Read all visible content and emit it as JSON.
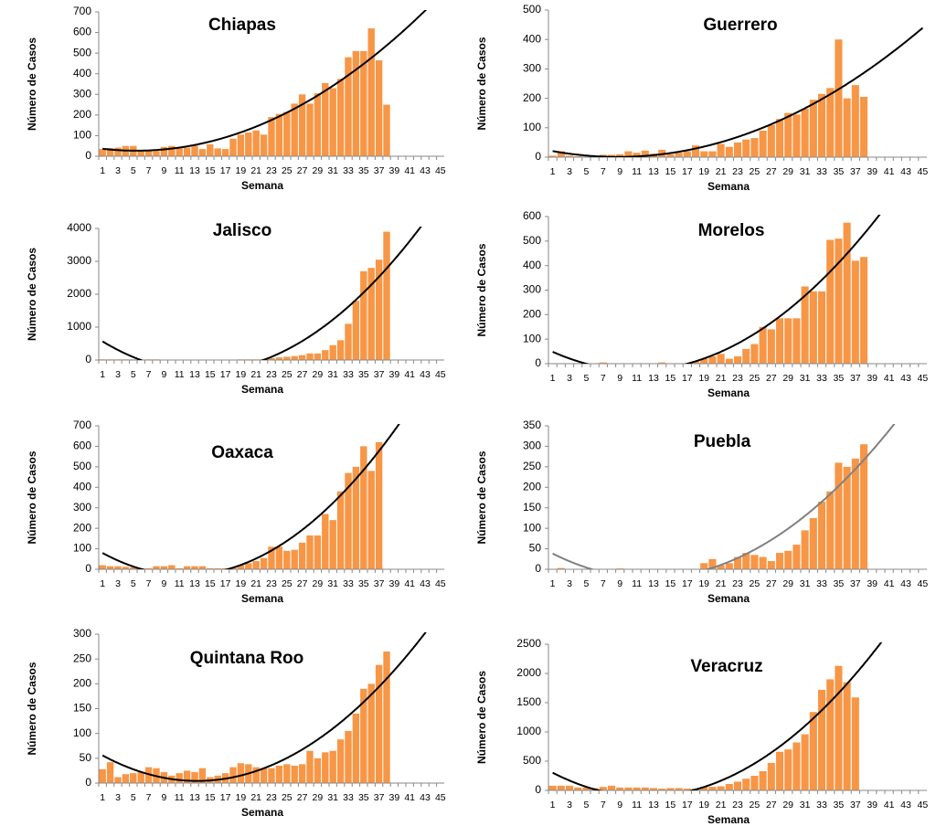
{
  "chart_data": [
    {
      "type": "bar",
      "title": "Chiapas",
      "x_label": "Semana",
      "y_label": "Número de Casos",
      "color": "#f79646",
      "categories": [
        "1",
        null,
        "3",
        null,
        "5",
        null,
        "7",
        null,
        "9",
        null,
        "11",
        null,
        "13",
        null,
        "15",
        null,
        "17",
        null,
        "19",
        null,
        "21",
        null,
        "23",
        null,
        "25",
        null,
        "27",
        null,
        "29",
        null,
        "31",
        null,
        "33",
        null,
        "35",
        null,
        "37",
        null,
        "39",
        null,
        "41",
        null,
        "43",
        null,
        "45"
      ],
      "values": [
        35,
        40,
        42,
        50,
        50,
        30,
        25,
        25,
        45,
        50,
        40,
        42,
        52,
        35,
        58,
        38,
        35,
        85,
        105,
        115,
        125,
        105,
        190,
        205,
        215,
        255,
        300,
        255,
        305,
        355,
        330,
        375,
        480,
        510,
        510,
        620,
        465,
        250,
        null,
        null,
        null,
        null,
        null,
        null,
        null
      ],
      "ylim": [
        0,
        700
      ],
      "yticks": [
        0,
        100,
        200,
        300,
        400,
        500,
        600,
        700
      ],
      "trendline": {
        "order": 2,
        "color": "#000000"
      }
    },
    {
      "type": "bar",
      "title": "Guerrero",
      "x_label": "Semana",
      "y_label": "Número de Casos",
      "color": "#f79646",
      "categories": [
        "1",
        null,
        "3",
        null,
        "5",
        null,
        "7",
        null,
        "9",
        null,
        "11",
        null,
        "13",
        null,
        "15",
        null,
        "17",
        null,
        "19",
        null,
        "21",
        null,
        "23",
        null,
        "25",
        null,
        "27",
        null,
        "29",
        null,
        "31",
        null,
        "33",
        null,
        "35",
        null,
        "37",
        null,
        "39",
        null,
        "41",
        null,
        "43",
        null,
        "45"
      ],
      "values": [
        5,
        20,
        5,
        3,
        2,
        2,
        8,
        8,
        10,
        20,
        15,
        22,
        12,
        25,
        10,
        15,
        20,
        40,
        20,
        20,
        45,
        35,
        50,
        60,
        65,
        90,
        110,
        130,
        150,
        145,
        165,
        195,
        215,
        235,
        400,
        200,
        245,
        205,
        null,
        null,
        null,
        null,
        null,
        null,
        null
      ],
      "ylim": [
        0,
        500
      ],
      "yticks": [
        0,
        100,
        200,
        300,
        400,
        500
      ],
      "trendline": {
        "order": 2,
        "color": "#000000"
      }
    },
    {
      "type": "bar",
      "title": "Jalisco",
      "x_label": "Semana",
      "y_label": "Número de Casos",
      "color": "#f79646",
      "categories": [
        "1",
        null,
        "3",
        null,
        "5",
        null,
        "7",
        null,
        "9",
        null,
        "11",
        null,
        "13",
        null,
        "15",
        null,
        "17",
        null,
        "19",
        null,
        "21",
        null,
        "23",
        null,
        "25",
        null,
        "27",
        null,
        "29",
        null,
        "31",
        null,
        "33",
        null,
        "35",
        null,
        "37",
        null,
        "39",
        null,
        "41",
        null,
        "43",
        null,
        "45"
      ],
      "values": [
        20,
        20,
        20,
        20,
        20,
        10,
        20,
        20,
        10,
        10,
        10,
        10,
        10,
        10,
        10,
        10,
        10,
        10,
        20,
        20,
        20,
        30,
        60,
        80,
        100,
        120,
        150,
        200,
        200,
        300,
        450,
        600,
        1100,
        1800,
        2700,
        2800,
        3050,
        3900,
        null,
        null,
        null,
        null,
        null,
        null,
        null
      ],
      "ylim": [
        0,
        4000
      ],
      "yticks": [
        0,
        1000,
        2000,
        3000,
        4000
      ],
      "trendline": {
        "order": 2,
        "color": "#000000"
      }
    },
    {
      "type": "bar",
      "title": "Morelos",
      "x_label": "Semana",
      "y_label": "Número de Casos",
      "color": "#f79646",
      "categories": [
        "1",
        null,
        "3",
        null,
        "5",
        null,
        "7",
        null,
        "9",
        null,
        "11",
        null,
        "13",
        null,
        "15",
        null,
        "17",
        null,
        "19",
        null,
        "21",
        null,
        "23",
        null,
        "25",
        null,
        "27",
        null,
        "29",
        null,
        "31",
        null,
        "33",
        null,
        "35",
        null,
        "37",
        null,
        "39",
        null,
        "41",
        null,
        "43",
        null,
        "45"
      ],
      "values": [
        2,
        2,
        2,
        2,
        2,
        2,
        5,
        2,
        2,
        2,
        2,
        2,
        2,
        5,
        2,
        2,
        2,
        10,
        20,
        30,
        40,
        20,
        30,
        60,
        80,
        150,
        140,
        185,
        185,
        185,
        315,
        295,
        295,
        505,
        510,
        575,
        420,
        435,
        null,
        null,
        null,
        null,
        null,
        null,
        null
      ],
      "ylim": [
        0,
        600
      ],
      "yticks": [
        0,
        100,
        200,
        300,
        400,
        500,
        600
      ],
      "trendline": {
        "order": 2,
        "color": "#000000"
      }
    },
    {
      "type": "bar",
      "title": "Oaxaca",
      "x_label": "Semana",
      "y_label": "Número de Casos",
      "color": "#f79646",
      "categories": [
        "1",
        null,
        "3",
        null,
        "5",
        null,
        "7",
        null,
        "9",
        null,
        "11",
        null,
        "13",
        null,
        "15",
        null,
        "17",
        null,
        "19",
        null,
        "21",
        null,
        "23",
        null,
        "25",
        null,
        "27",
        null,
        "29",
        null,
        "31",
        null,
        "33",
        null,
        "35",
        null,
        "37",
        null,
        "39",
        null,
        "41",
        null,
        "43",
        null,
        "45"
      ],
      "values": [
        20,
        15,
        15,
        12,
        10,
        5,
        5,
        15,
        15,
        20,
        5,
        15,
        15,
        15,
        5,
        5,
        5,
        10,
        20,
        30,
        40,
        55,
        110,
        110,
        90,
        95,
        130,
        165,
        165,
        270,
        240,
        380,
        470,
        500,
        600,
        480,
        620,
        null,
        null,
        null,
        null,
        null,
        null,
        null,
        null
      ],
      "ylim": [
        0,
        700
      ],
      "yticks": [
        0,
        100,
        200,
        300,
        400,
        500,
        600,
        700
      ],
      "trendline": {
        "order": 2,
        "color": "#000000"
      }
    },
    {
      "type": "bar",
      "title": "Puebla",
      "x_label": "Semana",
      "y_label": "Número de Casos",
      "color": "#f79646",
      "categories": [
        "1",
        null,
        "3",
        null,
        "5",
        null,
        "7",
        null,
        "9",
        null,
        "11",
        null,
        "13",
        null,
        "15",
        null,
        "17",
        null,
        "19",
        null,
        "21",
        null,
        "23",
        null,
        "25",
        null,
        "27",
        null,
        "29",
        null,
        "31",
        null,
        "33",
        null,
        "35",
        null,
        "37",
        null,
        "39",
        null,
        "41",
        null,
        "43",
        null,
        "45"
      ],
      "values": [
        1,
        3,
        1,
        1,
        1,
        1,
        1,
        1,
        2,
        1,
        1,
        1,
        1,
        1,
        1,
        1,
        1,
        1,
        15,
        25,
        10,
        15,
        30,
        40,
        35,
        30,
        20,
        40,
        45,
        60,
        95,
        125,
        165,
        190,
        260,
        250,
        270,
        305,
        null,
        null,
        null,
        null,
        null,
        null,
        null
      ],
      "ylim": [
        0,
        350
      ],
      "yticks": [
        0,
        50,
        100,
        150,
        200,
        250,
        300,
        350
      ],
      "trendline": {
        "order": 2,
        "color": "#808080"
      }
    },
    {
      "type": "bar",
      "title": "Quintana Roo",
      "x_label": "Semana",
      "y_label": "Número de Casos",
      "color": "#f79646",
      "categories": [
        "1",
        null,
        "3",
        null,
        "5",
        null,
        "7",
        null,
        "9",
        null,
        "11",
        null,
        "13",
        null,
        "15",
        null,
        "17",
        null,
        "19",
        null,
        "21",
        null,
        "23",
        null,
        "25",
        null,
        "27",
        null,
        "29",
        null,
        "31",
        null,
        "33",
        null,
        "35",
        null,
        "37",
        null,
        "39",
        null,
        "41",
        null,
        "43",
        null,
        "45"
      ],
      "values": [
        28,
        42,
        12,
        18,
        20,
        22,
        32,
        30,
        22,
        15,
        20,
        25,
        22,
        30,
        12,
        15,
        20,
        32,
        40,
        38,
        32,
        30,
        30,
        35,
        38,
        35,
        38,
        65,
        50,
        62,
        65,
        88,
        105,
        140,
        190,
        200,
        238,
        265,
        null,
        null,
        null,
        null,
        null,
        null,
        null
      ],
      "ylim": [
        0,
        300
      ],
      "yticks": [
        0,
        50,
        100,
        150,
        200,
        250,
        300
      ],
      "trendline": {
        "order": 2,
        "color": "#000000"
      }
    },
    {
      "type": "bar",
      "title": "Veracruz",
      "x_label": "Semana",
      "y_label": "Número de Casos",
      "color": "#f79646",
      "categories": [
        "1",
        null,
        "3",
        null,
        "5",
        null,
        "7",
        null,
        "9",
        null,
        "11",
        null,
        "13",
        null,
        "15",
        null,
        "17",
        null,
        "19",
        null,
        "21",
        null,
        "23",
        null,
        "25",
        null,
        "27",
        null,
        "29",
        null,
        "31",
        null,
        "33",
        null,
        "35",
        null,
        "37",
        null,
        "39",
        null,
        "41",
        null,
        "43",
        null,
        "45"
      ],
      "values": [
        80,
        80,
        80,
        50,
        50,
        40,
        60,
        80,
        50,
        50,
        50,
        50,
        40,
        30,
        40,
        40,
        30,
        30,
        60,
        60,
        70,
        110,
        150,
        200,
        250,
        330,
        470,
        660,
        700,
        820,
        960,
        1340,
        1720,
        1900,
        2130,
        1850,
        1590,
        null,
        null,
        null,
        null,
        null,
        null,
        null,
        null
      ],
      "ylim": [
        0,
        2500
      ],
      "yticks": [
        0,
        500,
        1000,
        1500,
        2000,
        2500
      ],
      "trendline": {
        "order": 2,
        "color": "#000000"
      }
    }
  ]
}
